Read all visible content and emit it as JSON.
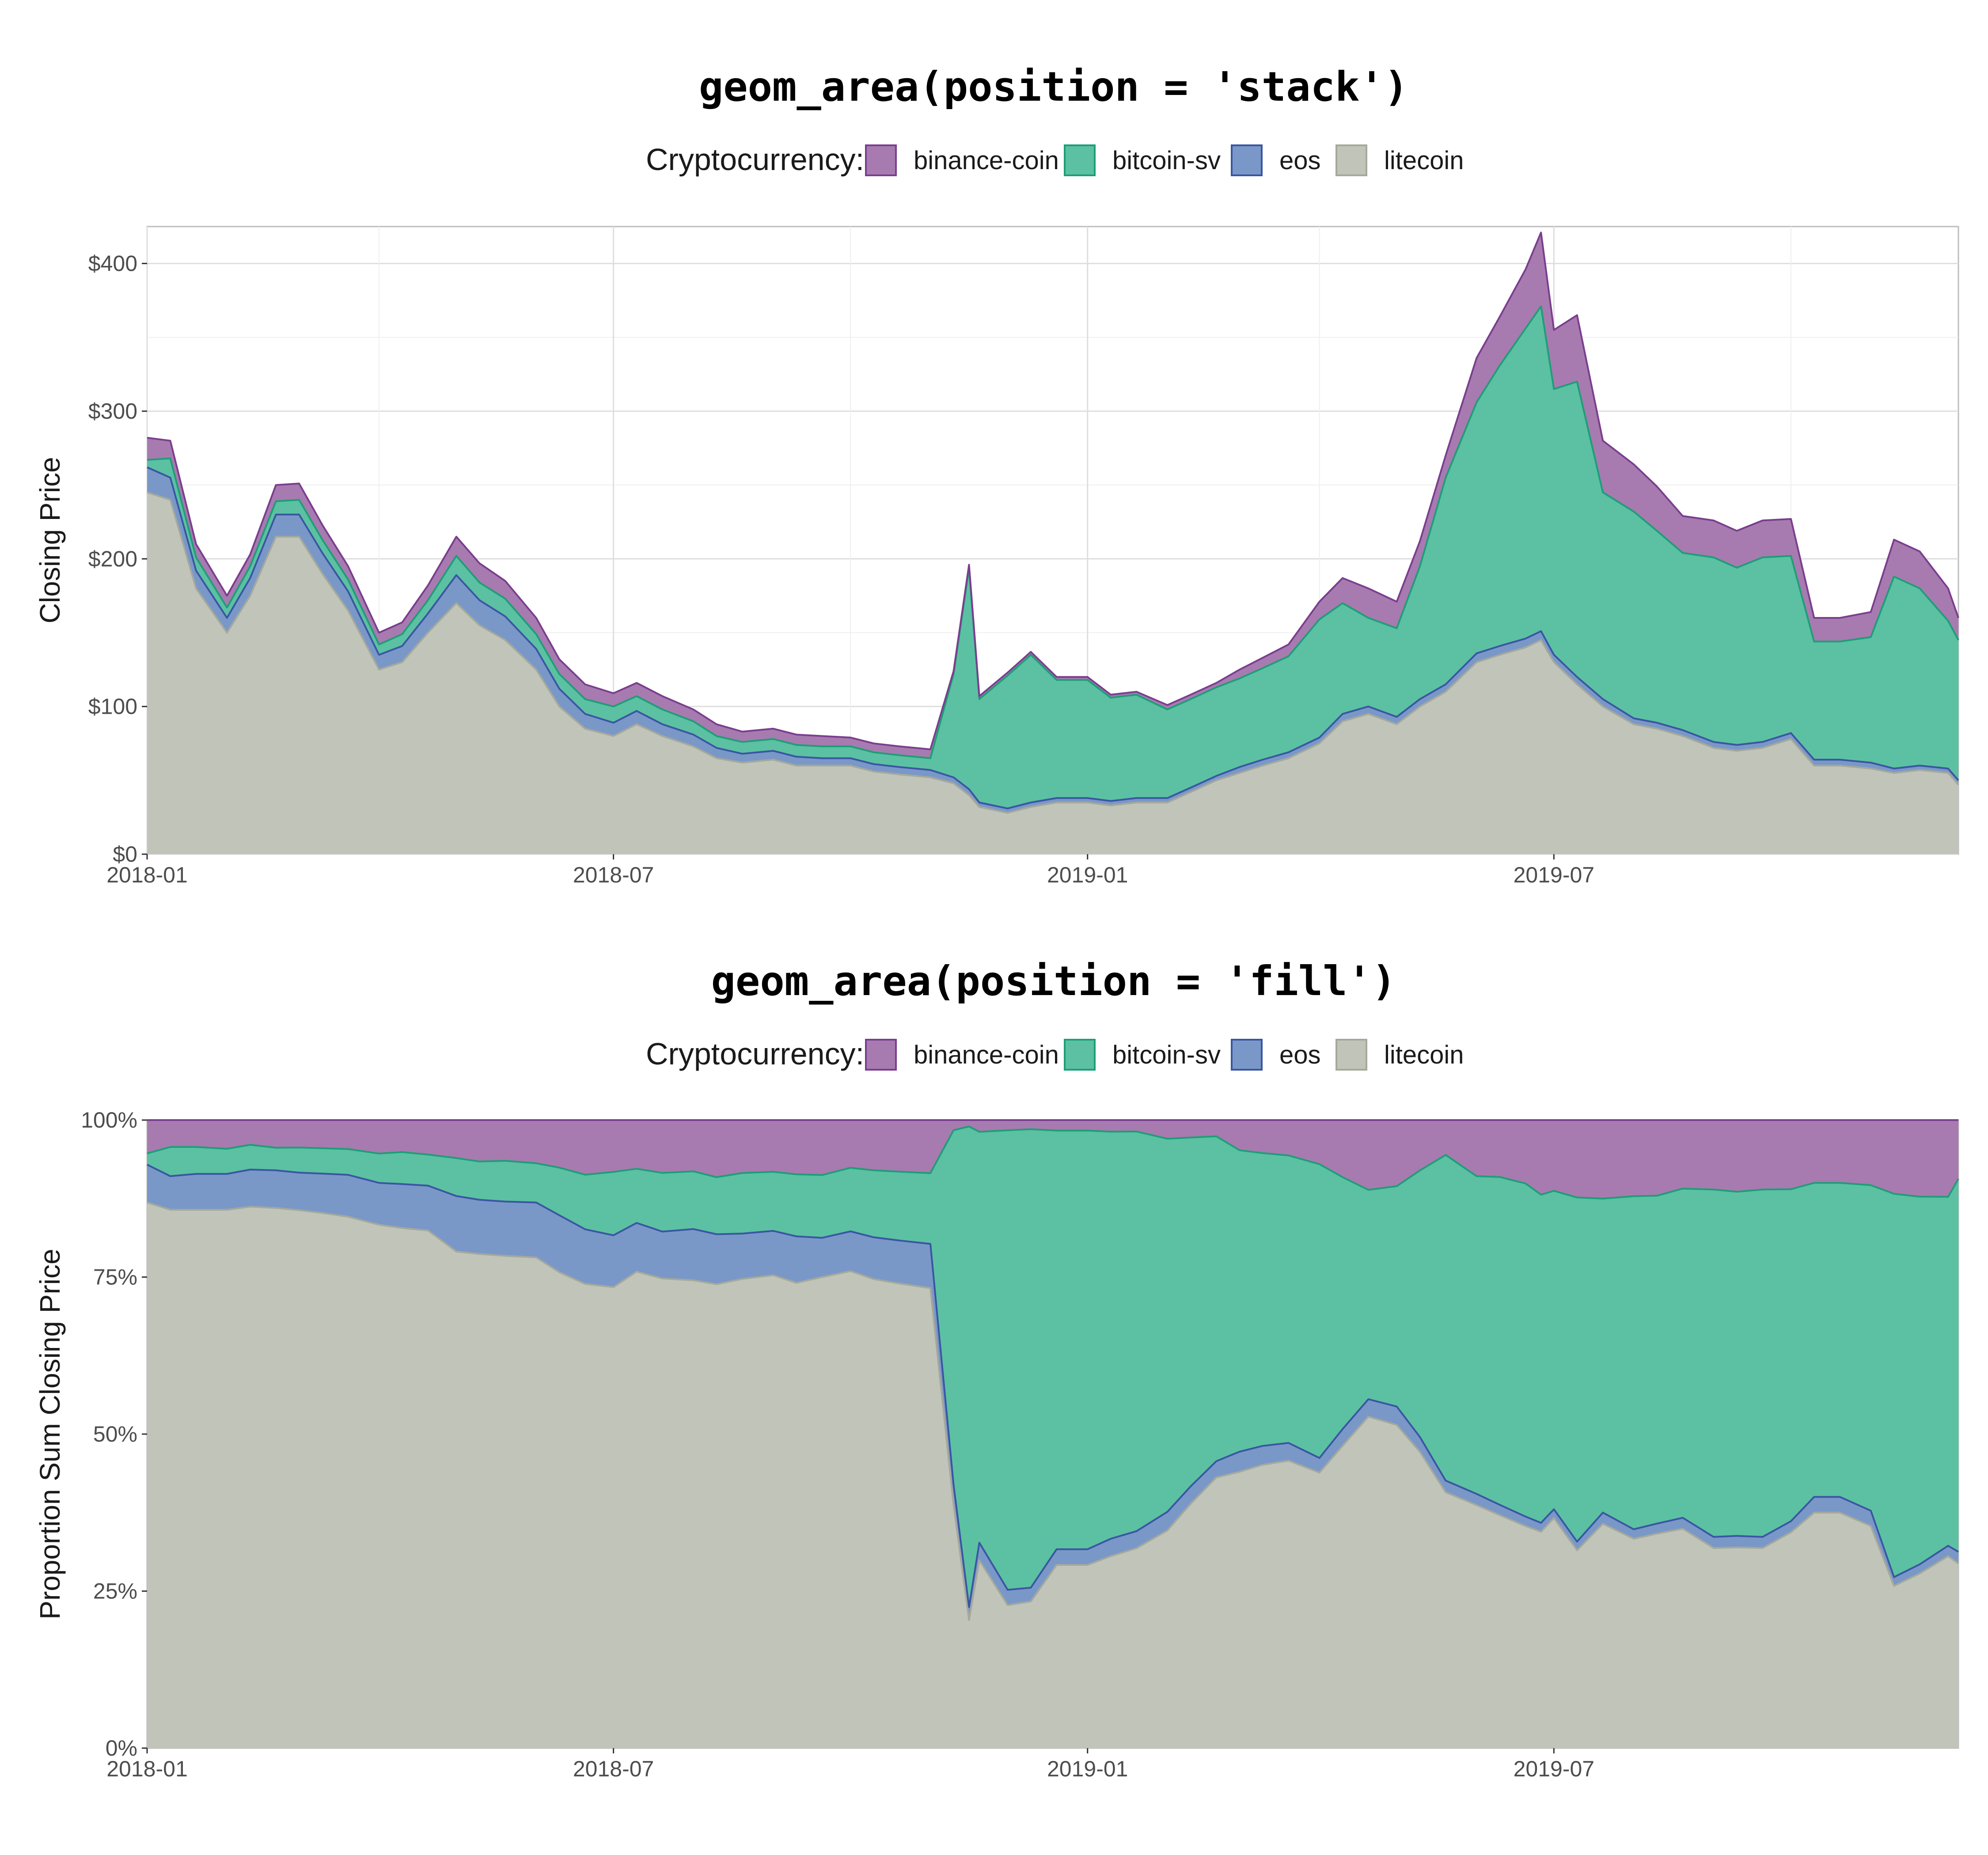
{
  "colors": {
    "binance-coin": {
      "fill": "#A77BB0",
      "line": "#7A3E8E"
    },
    "bitcoin-sv": {
      "fill": "#5BC1A2",
      "line": "#1E9E77"
    },
    "eos": {
      "fill": "#7998C8",
      "line": "#3B55A3"
    },
    "litecoin": {
      "fill": "#C1C4B8",
      "line": "#A5A99C"
    }
  },
  "legend": {
    "title": "Cryptocurrency:",
    "items": [
      "binance-coin",
      "bitcoin-sv",
      "eos",
      "litecoin"
    ]
  },
  "chart_data": [
    {
      "type": "area",
      "position": "stack",
      "title": "geom_area(position = 'stack')",
      "xlabel": "",
      "ylabel": "Closing Price",
      "x_ticks": [
        "2018-01",
        "2018-07",
        "2019-01",
        "2019-07"
      ],
      "y_ticks": [
        "$0",
        "$100",
        "$200",
        "$300",
        "$400"
      ],
      "y_tick_values": [
        0,
        100,
        200,
        300,
        400
      ],
      "xlim": [
        "2018-01-01",
        "2019-12-05"
      ],
      "ylim": [
        0,
        425
      ],
      "grid": true,
      "legend_position": "top",
      "x": [
        "2018-01-01",
        "2018-01-10",
        "2018-01-20",
        "2018-02-01",
        "2018-02-10",
        "2018-02-20",
        "2018-03-01",
        "2018-03-10",
        "2018-03-20",
        "2018-04-01",
        "2018-04-10",
        "2018-04-20",
        "2018-05-01",
        "2018-05-10",
        "2018-05-20",
        "2018-06-01",
        "2018-06-10",
        "2018-06-20",
        "2018-07-01",
        "2018-07-10",
        "2018-07-20",
        "2018-08-01",
        "2018-08-10",
        "2018-08-20",
        "2018-09-01",
        "2018-09-10",
        "2018-09-20",
        "2018-10-01",
        "2018-10-10",
        "2018-10-20",
        "2018-11-01",
        "2018-11-10",
        "2018-11-16",
        "2018-11-20",
        "2018-12-01",
        "2018-12-10",
        "2018-12-20",
        "2019-01-01",
        "2019-01-10",
        "2019-01-20",
        "2019-02-01",
        "2019-02-10",
        "2019-02-20",
        "2019-03-01",
        "2019-03-10",
        "2019-03-20",
        "2019-04-01",
        "2019-04-10",
        "2019-04-20",
        "2019-05-01",
        "2019-05-10",
        "2019-05-20",
        "2019-06-01",
        "2019-06-10",
        "2019-06-20",
        "2019-06-26",
        "2019-07-01",
        "2019-07-10",
        "2019-07-20",
        "2019-08-01",
        "2019-08-10",
        "2019-08-20",
        "2019-09-01",
        "2019-09-10",
        "2019-09-20",
        "2019-10-01",
        "2019-10-10",
        "2019-10-20",
        "2019-11-01",
        "2019-11-10",
        "2019-11-20",
        "2019-12-01",
        "2019-12-05"
      ],
      "series": [
        {
          "name": "litecoin",
          "values": [
            245,
            240,
            180,
            150,
            175,
            215,
            215,
            190,
            165,
            125,
            130,
            150,
            170,
            155,
            145,
            125,
            100,
            85,
            80,
            88,
            80,
            73,
            65,
            62,
            64,
            60,
            60,
            60,
            56,
            54,
            52,
            48,
            40,
            32,
            28,
            32,
            35,
            35,
            33,
            35,
            35,
            42,
            50,
            55,
            60,
            65,
            75,
            90,
            95,
            88,
            100,
            110,
            130,
            135,
            140,
            145,
            130,
            115,
            100,
            88,
            85,
            80,
            72,
            70,
            72,
            78,
            60,
            60,
            58,
            55,
            57,
            55,
            47
          ]
        },
        {
          "name": "eos",
          "values": [
            17,
            15,
            12,
            10,
            12,
            15,
            15,
            14,
            13,
            10,
            11,
            13,
            19,
            17,
            16,
            14,
            12,
            10,
            9,
            9,
            8,
            8,
            7,
            6,
            6,
            6,
            5,
            5,
            5,
            5,
            5,
            4,
            4,
            3,
            3,
            3,
            3,
            3,
            3,
            3,
            3,
            3,
            3,
            4,
            4,
            4,
            4,
            5,
            5,
            5,
            5,
            5,
            6,
            6,
            6,
            6,
            5,
            5,
            5,
            4,
            4,
            4,
            4,
            4,
            4,
            4,
            4,
            4,
            4,
            3,
            3,
            3,
            3
          ]
        },
        {
          "name": "bitcoin-sv",
          "values": [
            5,
            13,
            9,
            7,
            8,
            9,
            10,
            9,
            8,
            7,
            8,
            9,
            13,
            12,
            12,
            10,
            10,
            10,
            11,
            10,
            10,
            9,
            8,
            8,
            8,
            8,
            8,
            8,
            8,
            8,
            8,
            70,
            150,
            70,
            90,
            100,
            80,
            80,
            70,
            70,
            60,
            60,
            60,
            60,
            62,
            65,
            80,
            75,
            60,
            60,
            90,
            140,
            170,
            190,
            210,
            220,
            180,
            200,
            140,
            140,
            130,
            120,
            125,
            120,
            125,
            120,
            80,
            80,
            85,
            130,
            120,
            100,
            95
          ]
        },
        {
          "name": "binance-coin",
          "values": [
            15,
            12,
            9,
            8,
            8,
            11,
            11,
            10,
            9,
            8,
            8,
            10,
            13,
            13,
            12,
            11,
            10,
            10,
            9,
            9,
            9,
            8,
            8,
            7,
            7,
            7,
            7,
            6,
            6,
            6,
            6,
            2,
            2,
            2,
            2,
            2,
            2,
            2,
            2,
            2,
            3,
            3,
            3,
            6,
            7,
            8,
            12,
            17,
            20,
            18,
            17,
            15,
            30,
            33,
            40,
            50,
            40,
            45,
            35,
            32,
            30,
            25,
            25,
            25,
            25,
            25,
            16,
            16,
            17,
            25,
            25,
            22,
            15
          ]
        }
      ]
    },
    {
      "type": "area",
      "position": "fill",
      "title": "geom_area(position = 'fill')",
      "xlabel": "",
      "ylabel": "Proportion Sum Closing Price",
      "x_ticks": [
        "2018-01",
        "2018-07",
        "2019-01",
        "2019-07"
      ],
      "y_ticks": [
        "0%",
        "25%",
        "50%",
        "75%",
        "100%"
      ],
      "y_tick_values": [
        0,
        0.25,
        0.5,
        0.75,
        1
      ],
      "xlim": [
        "2018-01-01",
        "2019-12-05"
      ],
      "ylim": [
        0,
        1
      ],
      "grid": false,
      "legend_position": "top",
      "note_values_source": "same series as stacked chart, normalized per date"
    }
  ]
}
